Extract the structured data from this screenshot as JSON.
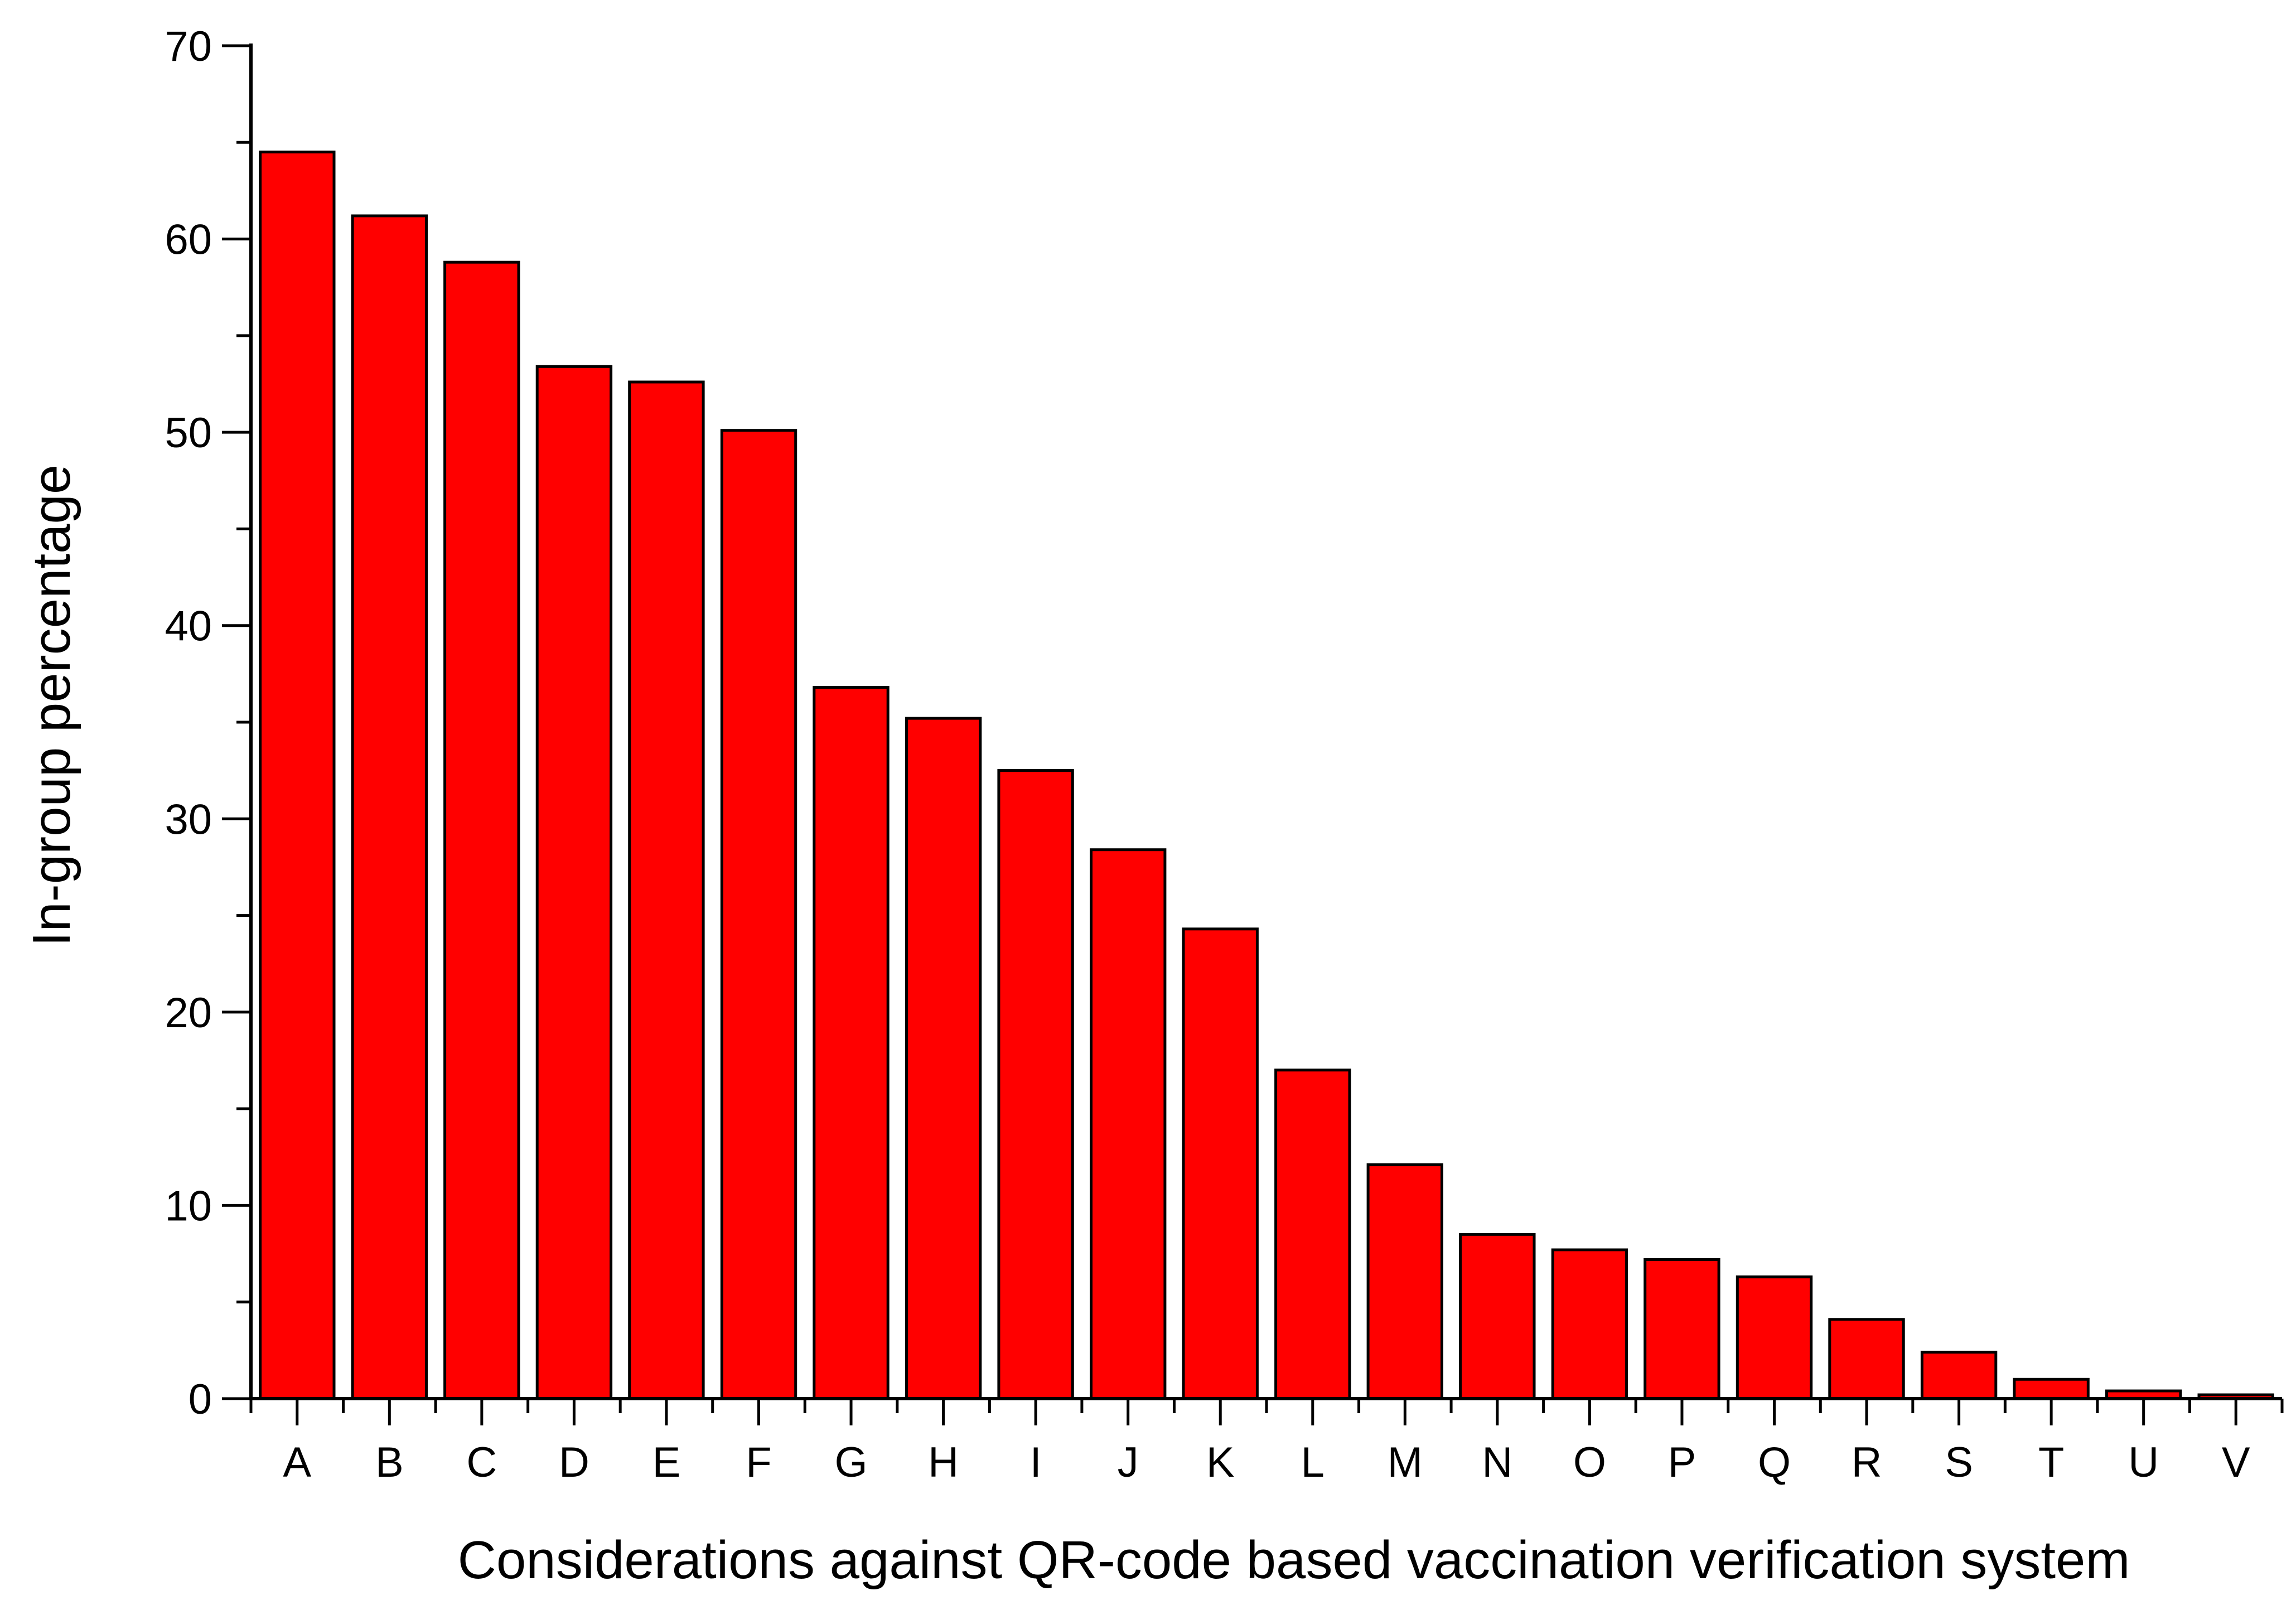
{
  "chart_data": {
    "type": "bar",
    "title": "",
    "xlabel": "Considerations against  QR-code  based vaccination verification system",
    "ylabel": "In-group percentage",
    "ylim": [
      0,
      70
    ],
    "y_ticks": [
      0,
      10,
      20,
      30,
      40,
      50,
      60,
      70
    ],
    "grid": false,
    "legend": "none",
    "bar_color": "#ff0000",
    "bar_edge_color": "#000000",
    "categories": [
      "A",
      "B",
      "C",
      "D",
      "E",
      "F",
      "G",
      "H",
      "I",
      "J",
      "K",
      "L",
      "M",
      "N",
      "O",
      "P",
      "Q",
      "R",
      "S",
      "T",
      "U",
      "V"
    ],
    "values": [
      64.5,
      61.2,
      58.8,
      53.4,
      52.6,
      50.1,
      36.8,
      35.2,
      32.5,
      28.4,
      24.3,
      17.0,
      12.1,
      8.5,
      7.7,
      7.2,
      6.3,
      4.1,
      2.4,
      1.0,
      0.4,
      0.2
    ]
  }
}
